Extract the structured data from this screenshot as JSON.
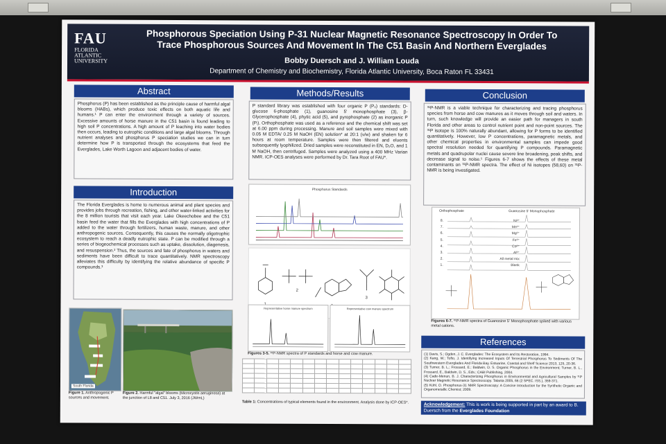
{
  "poster": {
    "logo": {
      "initials": "FAU",
      "name_line1": "FLORIDA",
      "name_line2": "ATLANTIC",
      "name_line3": "UNIVERSITY"
    },
    "title_line1": "Phosphorous Speciation Using P-31 Nuclear Magnetic Resonance Spectroscopy In Order To",
    "title_line2": "Trace Phosphorous Sources And Movement In The C51 Basin And Northern Everglades",
    "authors": "Bobby Duersch and J. William Louda",
    "department": "Department of Chemistry and Biochemistry, Florida Atlantic University, Boca Raton FL 33431"
  },
  "abstract": {
    "heading": "Abstract",
    "text": "Phosphorus (P) has been established as the principle cause of harmful algal blooms (HABs), which produce toxic effects on both aquatic life and humans.¹ P can enter the environment through a variety of sources. Excessive amounts of horse manure in the C51 basin is found leading to high soil P concentrations. A high amount of P leaching into water bodies then occurs, leading to eutrophic conditions and large algal blooms. Through nutrient analyses and phosphorus P speciation studies we can in turn determine how P is transported through the ecosystems that feed the Everglades, Lake Worth Lagoon and adjacent bodies of water."
  },
  "introduction": {
    "heading": "Introduction",
    "text": "The Florida Everglades is home to numerous animal and plant species and provides jobs through recreation, fishing, and other water-linked activities for the 8 million tourists that visit each year. Lake Okeechobee and the C51 basin feed the water that fills the Everglades with high concentrations of P added to the water through fertilizers, human waste, manure, and other anthropogenic sources. Consequently, this causes the normally oligotrophic ecosystem to reach a deadly eutrophic state. P can be modified through a series of biogeochemical processes such as uptake, dissolution, diagenesis, and resuspension.² Thus, the sources and fate of phosphorus in waters and sediments have been difficult to trace quantitatively. NMR spectroscopy alleviates this difficulty by identifying the relative abundance of specific P compounds.³"
  },
  "figures_left": {
    "fig1_caption_bold": "Figure 1.",
    "fig1_caption": " Anthropogenic P sources and movement.",
    "fig2_caption_bold": "Figure 2.",
    "fig2_caption": " Harmful \"algal\" blooms (Microcystis aeruginosa) at the junction of L8 and C51. July 3, 2016 (JWmL)",
    "map_label": "South Florida"
  },
  "methods": {
    "heading": "Methods/Results",
    "text": "P standard library was established with four organic P (Pₒ) standards: D-glucose 6-phosphate (1), guanosine 5' monophosphate (3), β-Glycerophosphate (4), phytic acid (5), and pyrophosphate (2) as inorganic P (Pᵢ). Orthophosphate was used as a reference and the chemical shift was set at 6.00 ppm during processing. Manure and soil samples were mixed with 0.05 M EDTA/ 0.25 M NaOH (EN) solution* at 20:1 (v/w) and shaken for 6 hours at room temperature. Samples were then filtered and eluents subsequently lyophilized. Dried samples were reconstituted in EN, D₂O, and 1 M NaOH, then centrifuged. Samples were analyzed using a 400 MHz Varian NMR. ICP-OES analyses were performed by Dr. Tara Root of FAU*.",
    "spectrum_title": "Phosphorus Standards",
    "structure_labels": [
      "1",
      "2",
      "3",
      "4",
      "5"
    ],
    "spectrum_a_title": "Representative horse manure spectrum",
    "spectrum_b_title": "Representative cow manure spectrum",
    "fig3_caption_bold": "Figures 3-5.",
    "fig3_caption": " ³¹P-NMR spectra of P standards and horse and cow manure.",
    "table_caption_bold": "Table 1:",
    "table_caption": " Concentrations of typical elements found in the environment. Analysis done by ICP-OES*."
  },
  "conclusion": {
    "heading": "Conclusion",
    "text": "³¹P-NMR is a viable technique for characterizing and tracing phosphorus species from horse and cow manures as it moves through soil and waters. In turn, such knowledge will provide an easier path for managers in south Florida and other areas to control nutrient point and non-point sources. The ³¹P isotope is 100% naturally abundant, allowing for P forms to be identified quantitatively. However, low P concentrations, paramagnetic metals, and other chemical properties in environmental samples can impede good spectral resolution needed for quantifying P compounds. Paramagnetic metals and quadrupolar nuclei cause severe line broadening, peak shifts, and decrease signal to noise.⁵ Figures 6-7 shows the effects of these metal contaminants on ³¹P-NMR spectra. The effect of Ni isotopes (58,60) on ³¹P-NMR is being investigated.",
    "plot_label_left": "Orthophosphate",
    "plot_label_right": "Guanosine 5' Monophosphate",
    "metal_labels": [
      "Ni²⁺",
      "Mn²⁺",
      "Mg²⁺",
      "Fe³⁺",
      "Co²⁺",
      "Al³⁺",
      "All metal mix",
      "Blank"
    ],
    "row_numbers": [
      "8.",
      "7.",
      "6.",
      "5.",
      "4.",
      "3.",
      "2.",
      "1."
    ],
    "fig67_caption_bold": "Figures 6-7.",
    "fig67_caption": " ³¹P-NMR spectra of Guanosine 5' Monophosphate spiked with various metal cations."
  },
  "references": {
    "heading": "References",
    "items": [
      "(1)  Davis, S.; Ogden, J. C. Everglades: The Ecosystem and Its Restoration, 1994.",
      "(2)  Kang, W.; Tofto, J. Identifying Increased Inputs Of Terrestrial Phosphorus To Sediments Of The Southwestern Everglades And Florida Bay. Estuarine, Coastal and Shelf Science 2013, 125, 20-36.",
      "(3)  Turner, B. L.; Frossard, E.; Baldwin, D. S. Organic Phosphorus in the Environment; Turner, B. L., Frossard, E., Baldwin, D. S., Eds.; CABI Publishing, 2004.",
      "(4)  Cade-Menun, B. J. Characterizing Phosphorus in Environmental and Agricultural Samples by ³¹P Nuclear Magnetic Resonance Spectroscopy. Talanta 2005, 66 (2 SPEC. ISS.), 359-371.",
      "(5)  Kühl, O. Phosphorus-31 NMR Spectroscopy: A Concise Introduction for the Synthetic Organic and Organometallic Chemist; 2009."
    ]
  },
  "acknowledgement": {
    "label": "Acknowledgement:",
    "text": " This is work is being supported in part by an award to B. Duersch from the ",
    "foundation": "Everglades Foundation"
  }
}
